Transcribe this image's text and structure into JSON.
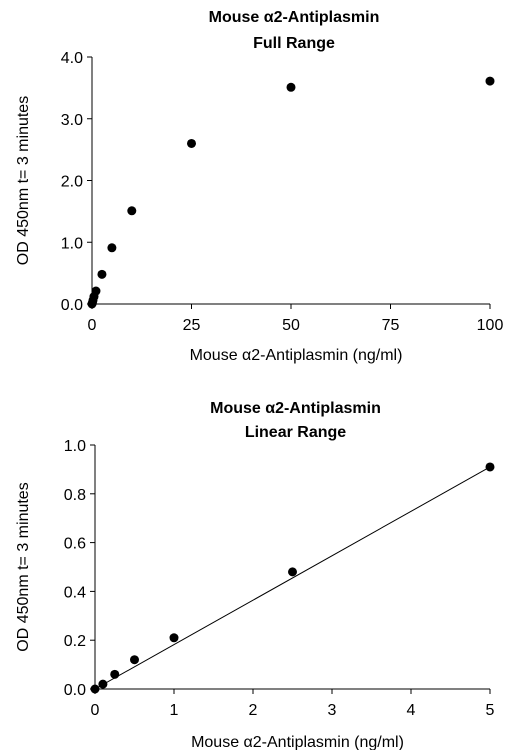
{
  "chart_data": [
    {
      "type": "scatter",
      "title": "Mouse α2-Antiplasmin",
      "subtitle": "Full Range",
      "xlabel": "Mouse  α2-Antiplasmin  (ng/ml)",
      "ylabel": "OD 450nm t= 3 minutes",
      "xlim": [
        0,
        100
      ],
      "ylim": [
        0,
        4.0
      ],
      "x_ticks": [
        "0",
        "25",
        "50",
        "75",
        "100"
      ],
      "y_ticks": [
        "0.0",
        "1.0",
        "2.0",
        "3.0",
        "4.0"
      ],
      "grid": false,
      "trendline": false,
      "series": [
        {
          "x": [
            0,
            0.1,
            0.25,
            0.5,
            1,
            2.5,
            5,
            10,
            25,
            50,
            100
          ],
          "y": [
            0.0,
            0.02,
            0.06,
            0.12,
            0.21,
            0.48,
            0.91,
            1.51,
            2.6,
            3.51,
            3.61
          ]
        }
      ]
    },
    {
      "type": "scatter",
      "title": "Mouse α2-Antiplasmin",
      "subtitle": "Linear Range",
      "xlabel": "Mouse  α2-Antiplasmin  (ng/ml)",
      "ylabel": "OD 450nm t= 3 minutes",
      "xlim": [
        0,
        5
      ],
      "ylim": [
        0,
        1.0
      ],
      "x_ticks": [
        "0",
        "1",
        "2",
        "3",
        "4",
        "5"
      ],
      "y_ticks": [
        "0.0",
        "0.2",
        "0.4",
        "0.6",
        "0.8",
        "1.0"
      ],
      "grid": false,
      "trendline": true,
      "trendline_fit": {
        "slope": 0.182,
        "intercept": 0.0
      },
      "series": [
        {
          "x": [
            0,
            0.1,
            0.25,
            0.5,
            1,
            2.5,
            5
          ],
          "y": [
            0.0,
            0.02,
            0.06,
            0.12,
            0.21,
            0.48,
            0.91
          ]
        }
      ]
    }
  ]
}
